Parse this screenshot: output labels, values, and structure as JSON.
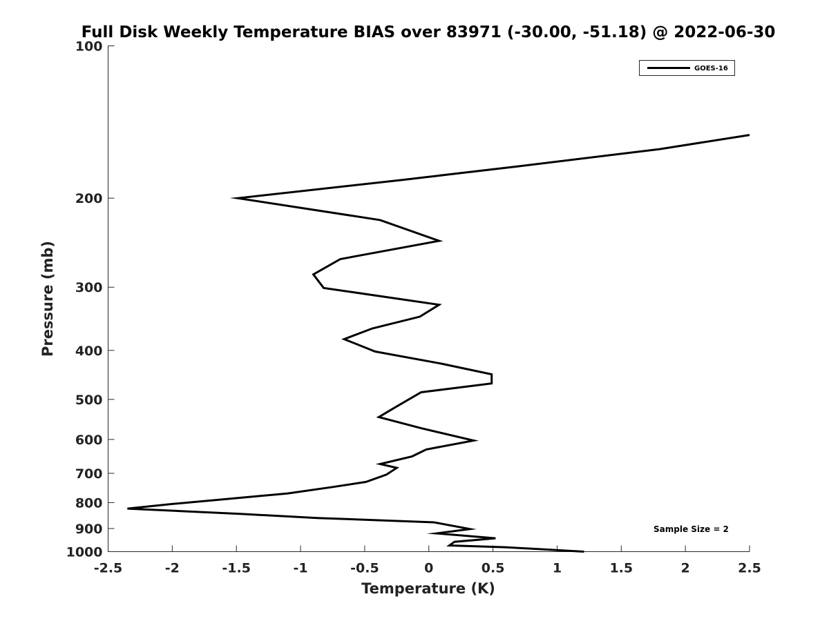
{
  "chart_data": {
    "type": "line",
    "title": "Full Disk Weekly Temperature BIAS over 83971 (-30.00, -51.18) @ 2022-06-30",
    "xlabel": "Temperature (K)",
    "ylabel": "Pressure (mb)",
    "xlim": [
      -2.5,
      2.5
    ],
    "ylim": [
      100,
      1000
    ],
    "y_scale": "log",
    "y_reversed": true,
    "x_ticks": [
      -2.5,
      -2,
      -1.5,
      -1,
      -0.5,
      0,
      0.5,
      1,
      1.5,
      2,
      2.5
    ],
    "x_tick_labels": [
      "-2.5",
      "-2",
      "-1.5",
      "-1",
      "-0.5",
      "0",
      "0.5",
      "1",
      "1.5",
      "2",
      "2.5"
    ],
    "y_ticks": [
      100,
      200,
      300,
      400,
      500,
      600,
      700,
      800,
      900,
      1000
    ],
    "y_tick_labels": [
      "100",
      "200",
      "300",
      "400",
      "500",
      "600",
      "700",
      "800",
      "900",
      "1000"
    ],
    "grid": false,
    "legend_position": "top-right",
    "annotation": "Sample Size = 2",
    "series": [
      {
        "name": "GOES-16",
        "color": "#000000",
        "points": [
          {
            "x": 2.5,
            "y": 150
          },
          {
            "x": 1.8,
            "y": 160
          },
          {
            "x": 0.7,
            "y": 173
          },
          {
            "x": -0.2,
            "y": 184
          },
          {
            "x": -1.49,
            "y": 200
          },
          {
            "x": -0.38,
            "y": 221
          },
          {
            "x": 0.08,
            "y": 243
          },
          {
            "x": -0.69,
            "y": 264
          },
          {
            "x": -0.9,
            "y": 283
          },
          {
            "x": -0.82,
            "y": 301
          },
          {
            "x": 0.08,
            "y": 325
          },
          {
            "x": -0.07,
            "y": 343
          },
          {
            "x": -0.44,
            "y": 362
          },
          {
            "x": -0.66,
            "y": 380
          },
          {
            "x": -0.42,
            "y": 402
          },
          {
            "x": 0.1,
            "y": 425
          },
          {
            "x": 0.49,
            "y": 446
          },
          {
            "x": 0.49,
            "y": 465
          },
          {
            "x": -0.06,
            "y": 484
          },
          {
            "x": -0.26,
            "y": 518
          },
          {
            "x": -0.39,
            "y": 542
          },
          {
            "x": -0.06,
            "y": 570
          },
          {
            "x": 0.35,
            "y": 603
          },
          {
            "x": -0.02,
            "y": 628
          },
          {
            "x": -0.13,
            "y": 648
          },
          {
            "x": -0.38,
            "y": 671
          },
          {
            "x": -0.25,
            "y": 683
          },
          {
            "x": -0.33,
            "y": 704
          },
          {
            "x": -0.49,
            "y": 728
          },
          {
            "x": -0.75,
            "y": 745
          },
          {
            "x": -1.1,
            "y": 767
          },
          {
            "x": -1.65,
            "y": 790
          },
          {
            "x": -2.0,
            "y": 805
          },
          {
            "x": -2.35,
            "y": 822
          },
          {
            "x": -1.47,
            "y": 842
          },
          {
            "x": -0.87,
            "y": 858
          },
          {
            "x": 0.04,
            "y": 875
          },
          {
            "x": 0.32,
            "y": 902
          },
          {
            "x": 0.06,
            "y": 920
          },
          {
            "x": 0.52,
            "y": 941
          },
          {
            "x": 0.2,
            "y": 956
          },
          {
            "x": 0.16,
            "y": 972
          },
          {
            "x": 0.6,
            "y": 980
          },
          {
            "x": 1.21,
            "y": 1000
          }
        ]
      }
    ]
  }
}
